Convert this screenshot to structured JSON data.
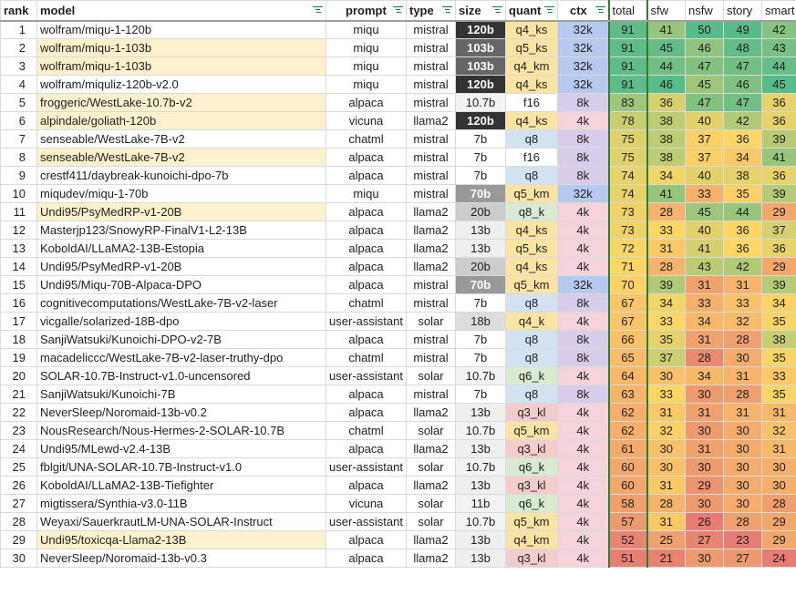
{
  "headers": {
    "rank": "rank",
    "model": "model",
    "prompt": "prompt",
    "type": "type",
    "size": "size",
    "quant": "quant",
    "ctx": "ctx",
    "total": "total",
    "sfw": "sfw",
    "nsfw": "nsfw",
    "story": "story",
    "smart": "smart"
  },
  "rows": [
    {
      "rank": "1",
      "model": "wolfram/miqu-1-120b",
      "prompt": "miqu",
      "type": "mistral",
      "size": "120b",
      "quant": "q4_ks",
      "ctx": "32k",
      "total": "91",
      "sfw": "41",
      "nsfw": "50",
      "story": "49",
      "smart": "42",
      "hl": false
    },
    {
      "rank": "2",
      "model": "wolfram/miqu-1-103b",
      "prompt": "miqu",
      "type": "mistral",
      "size": "103b",
      "quant": "q5_ks",
      "ctx": "32k",
      "total": "91",
      "sfw": "45",
      "nsfw": "46",
      "story": "48",
      "smart": "43",
      "hl": true
    },
    {
      "rank": "3",
      "model": "wolfram/miqu-1-103b",
      "prompt": "miqu",
      "type": "mistral",
      "size": "103b",
      "quant": "q4_km",
      "ctx": "32k",
      "total": "91",
      "sfw": "44",
      "nsfw": "47",
      "story": "47",
      "smart": "44",
      "hl": true
    },
    {
      "rank": "4",
      "model": "wolfram/miquliz-120b-v2.0",
      "prompt": "miqu",
      "type": "mistral",
      "size": "120b",
      "quant": "q4_ks",
      "ctx": "32k",
      "total": "91",
      "sfw": "46",
      "nsfw": "45",
      "story": "46",
      "smart": "45",
      "hl": false
    },
    {
      "rank": "5",
      "model": "froggeric/WestLake-10.7b-v2",
      "prompt": "alpaca",
      "type": "mistral",
      "size": "10.7b",
      "quant": "f16",
      "ctx": "8k",
      "total": "83",
      "sfw": "36",
      "nsfw": "47",
      "story": "47",
      "smart": "36",
      "hl": true
    },
    {
      "rank": "6",
      "model": "alpindale/goliath-120b",
      "prompt": "vicuna",
      "type": "llama2",
      "size": "120b",
      "quant": "q4_ks",
      "ctx": "4k",
      "total": "78",
      "sfw": "38",
      "nsfw": "40",
      "story": "42",
      "smart": "36",
      "hl": true
    },
    {
      "rank": "7",
      "model": "senseable/WestLake-7B-v2",
      "prompt": "chatml",
      "type": "mistral",
      "size": "7b",
      "quant": "q8",
      "ctx": "8k",
      "total": "75",
      "sfw": "38",
      "nsfw": "37",
      "story": "36",
      "smart": "39",
      "hl": false
    },
    {
      "rank": "8",
      "model": "senseable/WestLake-7B-v2",
      "prompt": "alpaca",
      "type": "mistral",
      "size": "7b",
      "quant": "f16",
      "ctx": "8k",
      "total": "75",
      "sfw": "38",
      "nsfw": "37",
      "story": "34",
      "smart": "41",
      "hl": true
    },
    {
      "rank": "9",
      "model": "crestf411/daybreak-kunoichi-dpo-7b",
      "prompt": "alpaca",
      "type": "mistral",
      "size": "7b",
      "quant": "q8",
      "ctx": "8k",
      "total": "74",
      "sfw": "34",
      "nsfw": "40",
      "story": "38",
      "smart": "36",
      "hl": false
    },
    {
      "rank": "10",
      "model": "miqudev/miqu-1-70b",
      "prompt": "miqu",
      "type": "mistral",
      "size": "70b",
      "quant": "q5_km",
      "ctx": "32k",
      "total": "74",
      "sfw": "41",
      "nsfw": "33",
      "story": "35",
      "smart": "39",
      "hl": false
    },
    {
      "rank": "11",
      "model": "Undi95/PsyMedRP-v1-20B",
      "prompt": "alpaca",
      "type": "llama2",
      "size": "20b",
      "quant": "q8_k",
      "ctx": "4k",
      "total": "73",
      "sfw": "28",
      "nsfw": "45",
      "story": "44",
      "smart": "29",
      "hl": true
    },
    {
      "rank": "12",
      "model": "Masterjp123/SnowyRP-FinalV1-L2-13B",
      "prompt": "alpaca",
      "type": "llama2",
      "size": "13b",
      "quant": "q4_ks",
      "ctx": "4k",
      "total": "73",
      "sfw": "33",
      "nsfw": "40",
      "story": "36",
      "smart": "37",
      "hl": false
    },
    {
      "rank": "13",
      "model": "KoboldAI/LLaMA2-13B-Estopia",
      "prompt": "alpaca",
      "type": "llama2",
      "size": "13b",
      "quant": "q5_ks",
      "ctx": "4k",
      "total": "72",
      "sfw": "31",
      "nsfw": "41",
      "story": "36",
      "smart": "36",
      "hl": false
    },
    {
      "rank": "14",
      "model": "Undi95/PsyMedRP-v1-20B",
      "prompt": "alpaca",
      "type": "llama2",
      "size": "20b",
      "quant": "q4_ks",
      "ctx": "4k",
      "total": "71",
      "sfw": "28",
      "nsfw": "43",
      "story": "42",
      "smart": "29",
      "hl": false
    },
    {
      "rank": "15",
      "model": "Undi95/Miqu-70B-Alpaca-DPO",
      "prompt": "alpaca",
      "type": "mistral",
      "size": "70b",
      "quant": "q5_km",
      "ctx": "32k",
      "total": "70",
      "sfw": "39",
      "nsfw": "31",
      "story": "31",
      "smart": "39",
      "hl": false
    },
    {
      "rank": "16",
      "model": "cognitivecomputations/WestLake-7B-v2-laser",
      "prompt": "chatml",
      "type": "mistral",
      "size": "7b",
      "quant": "q8",
      "ctx": "8k",
      "total": "67",
      "sfw": "34",
      "nsfw": "33",
      "story": "33",
      "smart": "34",
      "hl": false
    },
    {
      "rank": "17",
      "model": "vicgalle/solarized-18B-dpo",
      "prompt": "user-assistant",
      "type": "solar",
      "size": "18b",
      "quant": "q4_k",
      "ctx": "4k",
      "total": "67",
      "sfw": "33",
      "nsfw": "34",
      "story": "32",
      "smart": "35",
      "hl": false
    },
    {
      "rank": "18",
      "model": "SanjiWatsuki/Kunoichi-DPO-v2-7B",
      "prompt": "alpaca",
      "type": "mistral",
      "size": "7b",
      "quant": "q8",
      "ctx": "8k",
      "total": "66",
      "sfw": "35",
      "nsfw": "31",
      "story": "28",
      "smart": "38",
      "hl": false
    },
    {
      "rank": "19",
      "model": "macadeliccc/WestLake-7B-v2-laser-truthy-dpo",
      "prompt": "chatml",
      "type": "mistral",
      "size": "7b",
      "quant": "q8",
      "ctx": "8k",
      "total": "65",
      "sfw": "37",
      "nsfw": "28",
      "story": "30",
      "smart": "35",
      "hl": false
    },
    {
      "rank": "20",
      "model": "SOLAR-10.7B-Instruct-v1.0-uncensored",
      "prompt": "user-assistant",
      "type": "solar",
      "size": "10.7b",
      "quant": "q6_k",
      "ctx": "4k",
      "total": "64",
      "sfw": "30",
      "nsfw": "34",
      "story": "31",
      "smart": "33",
      "hl": false
    },
    {
      "rank": "21",
      "model": "SanjiWatsuki/Kunoichi-7B",
      "prompt": "alpaca",
      "type": "mistral",
      "size": "7b",
      "quant": "q8",
      "ctx": "8k",
      "total": "63",
      "sfw": "33",
      "nsfw": "30",
      "story": "28",
      "smart": "35",
      "hl": false
    },
    {
      "rank": "22",
      "model": "NeverSleep/Noromaid-13b-v0.2",
      "prompt": "alpaca",
      "type": "llama2",
      "size": "13b",
      "quant": "q3_kl",
      "ctx": "4k",
      "total": "62",
      "sfw": "31",
      "nsfw": "31",
      "story": "31",
      "smart": "31",
      "hl": false
    },
    {
      "rank": "23",
      "model": "NousResearch/Nous-Hermes-2-SOLAR-10.7B",
      "prompt": "chatml",
      "type": "solar",
      "size": "10.7b",
      "quant": "q5_km",
      "ctx": "4k",
      "total": "62",
      "sfw": "32",
      "nsfw": "30",
      "story": "30",
      "smart": "32",
      "hl": false
    },
    {
      "rank": "24",
      "model": "Undi95/MLewd-v2.4-13B",
      "prompt": "alpaca",
      "type": "llama2",
      "size": "13b",
      "quant": "q3_kl",
      "ctx": "4k",
      "total": "61",
      "sfw": "30",
      "nsfw": "31",
      "story": "30",
      "smart": "31",
      "hl": false
    },
    {
      "rank": "25",
      "model": "fblgit/UNA-SOLAR-10.7B-Instruct-v1.0",
      "prompt": "user-assistant",
      "type": "solar",
      "size": "10.7b",
      "quant": "q6_k",
      "ctx": "4k",
      "total": "60",
      "sfw": "30",
      "nsfw": "30",
      "story": "30",
      "smart": "30",
      "hl": false
    },
    {
      "rank": "26",
      "model": "KoboldAI/LLaMA2-13B-Tiefighter",
      "prompt": "alpaca",
      "type": "llama2",
      "size": "13b",
      "quant": "q3_kl",
      "ctx": "4k",
      "total": "60",
      "sfw": "31",
      "nsfw": "29",
      "story": "30",
      "smart": "30",
      "hl": false
    },
    {
      "rank": "27",
      "model": "migtissera/Synthia-v3.0-11B",
      "prompt": "vicuna",
      "type": "solar",
      "size": "11b",
      "quant": "q6_k",
      "ctx": "4k",
      "total": "58",
      "sfw": "28",
      "nsfw": "30",
      "story": "30",
      "smart": "28",
      "hl": false
    },
    {
      "rank": "28",
      "model": "Weyaxi/SauerkrautLM-UNA-SOLAR-Instruct",
      "prompt": "user-assistant",
      "type": "solar",
      "size": "10.7b",
      "quant": "q5_km",
      "ctx": "4k",
      "total": "57",
      "sfw": "31",
      "nsfw": "26",
      "story": "28",
      "smart": "29",
      "hl": false
    },
    {
      "rank": "29",
      "model": "Undi95/toxicqa-Llama2-13B",
      "prompt": "alpaca",
      "type": "llama2",
      "size": "13b",
      "quant": "q4_km",
      "ctx": "4k",
      "total": "52",
      "sfw": "25",
      "nsfw": "27",
      "story": "23",
      "smart": "29",
      "hl": true
    },
    {
      "rank": "30",
      "model": "NeverSleep/Noromaid-13b-v0.3",
      "prompt": "alpaca",
      "type": "llama2",
      "size": "13b",
      "quant": "q3_kl",
      "ctx": "4k",
      "total": "51",
      "sfw": "21",
      "nsfw": "30",
      "story": "27",
      "smart": "24",
      "hl": false
    }
  ],
  "colors": {
    "highlight": "#fdf0cc",
    "divider": "#2e7d32",
    "filter": "#188038",
    "ctx": {
      "32k": "#b7c9ef",
      "8k": "#d7ccea",
      "4k": "#f5d3db"
    },
    "quant": {
      "q4_ks": "#fbe3a4",
      "q5_ks": "#fbe3a4",
      "q4_km": "#fbe3a4",
      "f16": "#ffffff",
      "q8": "#d3e2f1",
      "q5_km": "#fbe3a4",
      "q8_k": "#d9ead3",
      "q6_k": "#d9ead3",
      "q4_k": "#fbe3a4",
      "q3_kl": "#f4cccc"
    },
    "size": {
      "120b": "#333333",
      "103b": "#666666",
      "70b": "#999999",
      "20b": "#cccccc",
      "18b": "#dddddd",
      "13b": "#efefef",
      "11b": "#f3f3f3",
      "10.7b": "#f3f3f3",
      "7b": "#ffffff"
    }
  }
}
